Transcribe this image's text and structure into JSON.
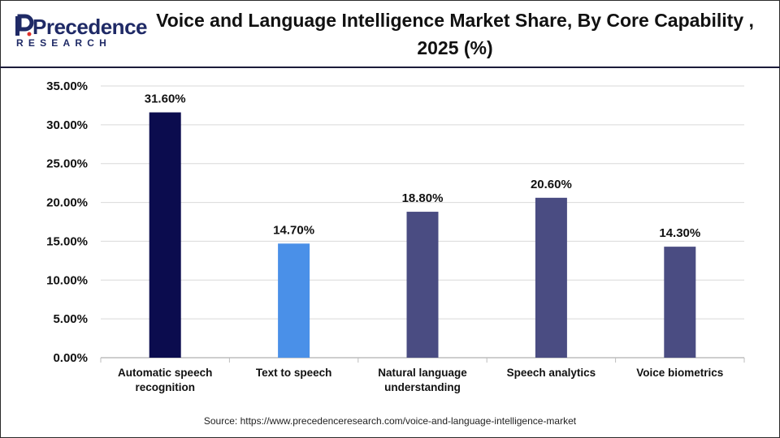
{
  "logo": {
    "main": "Precedence",
    "sub": "RESEARCH"
  },
  "title": "Voice and Language Intelligence Market Share, By Core Capability  , 2025 (%)",
  "source": "Source: https://www.precedenceresearch.com/voice-and-language-intelligence-market",
  "colors": {
    "brand": "#1f2a66",
    "grid": "#d9d9d9"
  },
  "chart_data": {
    "type": "bar",
    "categories": [
      "Automatic speech recognition",
      "Text to speech",
      "Natural language understanding",
      "Speech analytics",
      "Voice biometrics"
    ],
    "values": [
      31.6,
      14.7,
      18.8,
      20.6,
      14.3
    ],
    "data_labels": [
      "31.60%",
      "14.70%",
      "18.80%",
      "20.60%",
      "14.30%"
    ],
    "bar_colors": [
      "#0b0c4e",
      "#4a90e8",
      "#4a4c82",
      "#4a4c82",
      "#4a4c82"
    ],
    "y_ticks": [
      "0.00%",
      "5.00%",
      "10.00%",
      "15.00%",
      "20.00%",
      "25.00%",
      "30.00%",
      "35.00%"
    ],
    "ylim": [
      0,
      35
    ],
    "grid": true,
    "legend": "none"
  }
}
